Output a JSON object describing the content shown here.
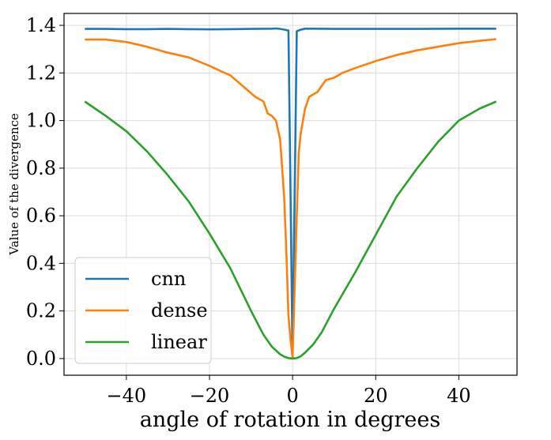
{
  "chart_data": {
    "type": "line",
    "title": "",
    "xlabel": "angle of rotation in degrees",
    "ylabel": "Value of the divergence",
    "xlim": [
      -55,
      54
    ],
    "ylim": [
      -0.07,
      1.45
    ],
    "xticks": [
      -40,
      -20,
      0,
      20,
      40
    ],
    "yticks": [
      0.0,
      0.2,
      0.4,
      0.6,
      0.8,
      1.0,
      1.2,
      1.4
    ],
    "xtick_labels": [
      "−40",
      "−20",
      "0",
      "20",
      "40"
    ],
    "ytick_labels": [
      "0.0",
      "0.2",
      "0.4",
      "0.6",
      "0.8",
      "1.0",
      "1.2",
      "1.4"
    ],
    "grid": true,
    "legend_position": "lower-left",
    "series": [
      {
        "name": "cnn",
        "color": "#1f77b4",
        "x": [
          -50,
          -45,
          -40,
          -35,
          -30,
          -25,
          -20,
          -15,
          -10,
          -5,
          -4,
          -3,
          -2,
          -1,
          -0.5,
          0,
          0.5,
          1,
          2,
          3,
          5,
          10,
          20,
          30,
          40,
          49
        ],
        "y": [
          1.385,
          1.385,
          1.384,
          1.384,
          1.385,
          1.384,
          1.383,
          1.384,
          1.385,
          1.386,
          1.387,
          1.385,
          1.382,
          1.378,
          0.7,
          0.005,
          0.7,
          1.375,
          1.382,
          1.386,
          1.386,
          1.385,
          1.385,
          1.385,
          1.386,
          1.386
        ]
      },
      {
        "name": "dense",
        "color": "#ff7f0e",
        "x": [
          -50,
          -45,
          -40,
          -35,
          -30,
          -25,
          -20,
          -17,
          -15,
          -13,
          -11,
          -9,
          -7,
          -6,
          -5,
          -4,
          -3,
          -2,
          -1.5,
          -1,
          -0.5,
          0,
          0.5,
          1,
          1.5,
          2,
          3,
          4,
          6,
          8,
          10,
          12,
          15,
          20,
          25,
          30,
          35,
          40,
          45,
          49
        ],
        "y": [
          1.34,
          1.34,
          1.33,
          1.31,
          1.285,
          1.265,
          1.23,
          1.205,
          1.19,
          1.16,
          1.13,
          1.1,
          1.08,
          1.03,
          1.02,
          1.0,
          0.92,
          0.67,
          0.45,
          0.18,
          0.08,
          0.005,
          0.3,
          0.6,
          0.87,
          0.95,
          1.05,
          1.1,
          1.12,
          1.17,
          1.18,
          1.2,
          1.22,
          1.25,
          1.275,
          1.295,
          1.31,
          1.325,
          1.335,
          1.342
        ]
      },
      {
        "name": "linear",
        "color": "#2ca02c",
        "x": [
          -50,
          -45,
          -40,
          -35,
          -30,
          -25,
          -20,
          -15,
          -10,
          -7,
          -5,
          -3,
          -2,
          -1,
          0,
          1,
          2,
          3,
          5,
          7,
          10,
          15,
          20,
          25,
          30,
          35,
          40,
          45,
          49
        ],
        "y": [
          1.08,
          1.02,
          0.955,
          0.87,
          0.77,
          0.66,
          0.525,
          0.38,
          0.2,
          0.1,
          0.05,
          0.018,
          0.008,
          0.002,
          0.0,
          0.002,
          0.01,
          0.025,
          0.06,
          0.11,
          0.21,
          0.36,
          0.52,
          0.68,
          0.8,
          0.91,
          1.0,
          1.05,
          1.08
        ]
      }
    ]
  }
}
